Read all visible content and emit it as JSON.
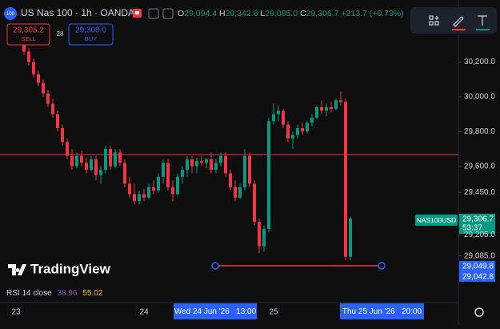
{
  "header": {
    "logo": "100",
    "symbol": "US Nas 100 · 1h · OANDA",
    "ohlc": [
      {
        "key": "O",
        "value": "29,094.4"
      },
      {
        "key": "H",
        "value": "29,342.6"
      },
      {
        "key": "L",
        "value": "29,085.0"
      },
      {
        "key": "C",
        "value": "29,306.7"
      }
    ],
    "change": "+213.7 (+0.73%)"
  },
  "trade": {
    "sell_price": "29,305.2",
    "sell": "SELL",
    "spread": "28",
    "buy_price": "29,308.0",
    "buy": "BUY"
  },
  "watermark": "TradingView",
  "indicator": {
    "name": "RSI 14 close",
    "values": [
      "38.96",
      "55.02"
    ]
  },
  "price_tags": {
    "symbol": "NAS100USD",
    "last": "29,306.7",
    "countdown": "53:37",
    "cross_1": "29,049.8",
    "cross_2": "29,042.8"
  },
  "time_cursor": {
    "left": "Wed 24 Jun '26   13:00",
    "right": "Thu 25 Jun '26   20:00"
  },
  "chart_data": {
    "type": "candlestick",
    "categories": [
      "23",
      null,
      null,
      null,
      null,
      null,
      null,
      null,
      null,
      null,
      null,
      null,
      null,
      null,
      null,
      null,
      null,
      null,
      null,
      null,
      null,
      null,
      null,
      null,
      null,
      "24",
      null,
      null,
      null,
      null,
      null,
      null,
      null,
      null,
      null,
      null,
      null,
      null,
      null,
      null,
      null,
      null,
      null,
      null,
      null,
      null,
      null,
      null,
      null,
      null,
      null,
      null,
      "25",
      null,
      null,
      null,
      null,
      null,
      null,
      null,
      null,
      null,
      null,
      null,
      null,
      null,
      null,
      null,
      null
    ],
    "open": [
      30300,
      30260,
      30200,
      30130,
      30080,
      30020,
      29960,
      29900,
      29820,
      29740,
      29660,
      29600,
      29660,
      29620,
      29580,
      29640,
      29550,
      29580,
      29700,
      29600,
      29680,
      29620,
      29500,
      29440,
      29400,
      29440,
      29420,
      29480,
      29460,
      29540,
      29620,
      29480,
      29440,
      29540,
      29580,
      29640,
      29600,
      29630,
      29620,
      29640,
      29580,
      29620,
      29660,
      29560,
      29480,
      29420,
      29480,
      29660,
      29500,
      29280,
      29140,
      29240,
      29860,
      29900,
      29920,
      29840,
      29760,
      29780,
      29820,
      29800,
      29850,
      29880,
      29940,
      29920,
      29940,
      29930,
      29980,
      29970,
      29080
    ],
    "high": [
      30330,
      30280,
      30220,
      30150,
      30100,
      30040,
      29990,
      29920,
      29840,
      29760,
      29700,
      29680,
      29690,
      29650,
      29660,
      29660,
      29600,
      29720,
      29720,
      29700,
      29700,
      29640,
      29540,
      29500,
      29460,
      29470,
      29500,
      29520,
      29560,
      29640,
      29640,
      29520,
      29560,
      29600,
      29660,
      29660,
      29650,
      29660,
      29650,
      29680,
      29640,
      29680,
      29680,
      29580,
      29520,
      29500,
      29700,
      29680,
      29520,
      29300,
      29260,
      29880,
      29960,
      29950,
      29930,
      29860,
      29800,
      29840,
      29850,
      29860,
      29900,
      29950,
      29980,
      29960,
      29970,
      29990,
      30030,
      29990,
      29310
    ],
    "low": [
      30240,
      30180,
      30110,
      30060,
      30000,
      29940,
      29880,
      29800,
      29720,
      29640,
      29580,
      29590,
      29600,
      29560,
      29570,
      29520,
      29500,
      29560,
      29580,
      29590,
      29600,
      29480,
      29420,
      29380,
      29380,
      29400,
      29410,
      29440,
      29450,
      29500,
      29460,
      29400,
      29430,
      29500,
      29540,
      29560,
      29560,
      29600,
      29590,
      29560,
      29560,
      29600,
      29540,
      29460,
      29400,
      29410,
      29460,
      29480,
      29260,
      29100,
      29110,
      29220,
      29840,
      29860,
      29820,
      29740,
      29700,
      29760,
      29780,
      29790,
      29830,
      29870,
      29900,
      29890,
      29910,
      29920,
      29950,
      29060,
      29060
    ],
    "close": [
      30260,
      30200,
      30130,
      30080,
      30020,
      29960,
      29900,
      29820,
      29740,
      29660,
      29600,
      29660,
      29620,
      29580,
      29640,
      29550,
      29580,
      29700,
      29600,
      29680,
      29620,
      29500,
      29440,
      29400,
      29440,
      29420,
      29480,
      29460,
      29540,
      29620,
      29480,
      29440,
      29540,
      29580,
      29640,
      29600,
      29630,
      29620,
      29640,
      29580,
      29620,
      29660,
      29560,
      29480,
      29420,
      29480,
      29660,
      29500,
      29280,
      29140,
      29240,
      29860,
      29900,
      29920,
      29840,
      29760,
      29780,
      29820,
      29800,
      29850,
      29880,
      29940,
      29920,
      29940,
      29930,
      29980,
      29970,
      29080,
      29300
    ],
    "up_color": "#089981",
    "down_color": "#f23645",
    "ylim": [
      28830,
      30520
    ],
    "yticks": [
      {
        "value": 30200,
        "label": "30,200.0"
      },
      {
        "value": 30000,
        "label": "30,000.0"
      },
      {
        "value": 29800,
        "label": "29,800.0"
      },
      {
        "value": 29600,
        "label": "29,600.0"
      },
      {
        "value": 29450,
        "label": "29,450.0"
      },
      {
        "value": 29205,
        "label": "29,205.0"
      },
      {
        "value": 29085,
        "label": "29,085.0"
      }
    ],
    "grid": false,
    "hline": {
      "value": 29667,
      "color": "#f23645"
    },
    "trendline": {
      "value": 29028,
      "color": "#f23645"
    }
  }
}
